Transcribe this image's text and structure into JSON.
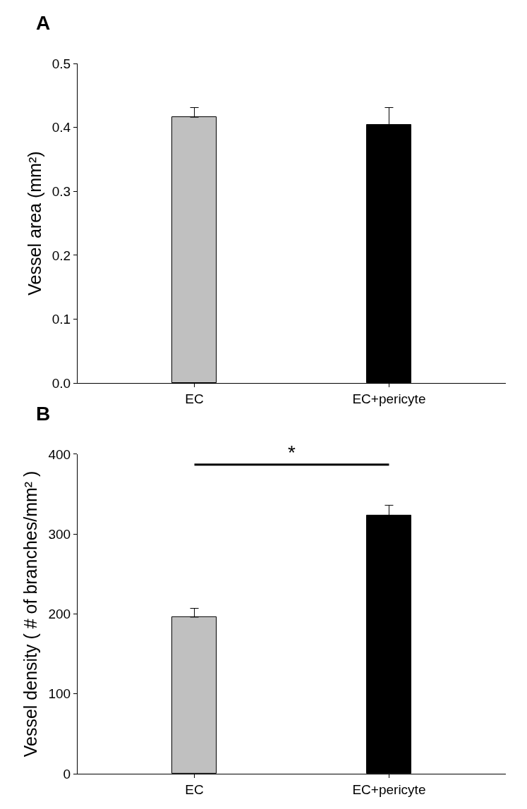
{
  "chart_data": [
    {
      "type": "bar",
      "title": "A",
      "categories": [
        "EC",
        "EC+pericyte"
      ],
      "ylabel": "Vessel area (mm²)",
      "series": [
        {
          "colors": [
            "#c0c0c0",
            "#000000"
          ],
          "values": [
            0.416,
            0.404
          ],
          "errors": [
            [
              0.416,
              0.431
            ],
            [
              0.404,
              0.431
            ]
          ]
        }
      ],
      "ylim": [
        0,
        0.5
      ],
      "yticks": [
        {
          "value": 0,
          "label": "0.0"
        },
        0.1,
        0.2,
        0.3,
        0.4,
        0.5
      ]
    },
    {
      "type": "bar",
      "title": "B",
      "categories": [
        "EC",
        "EC+pericyte"
      ],
      "ylabel": "Vessel density ( # of branches/mm² )",
      "series": [
        {
          "colors": [
            "#c0c0c0",
            "#000000"
          ],
          "values": [
            196,
            323
          ],
          "errors": [
            [
              196,
              207
            ],
            [
              323,
              336
            ]
          ]
        }
      ],
      "ylim": [
        0,
        400
      ],
      "yticks": [
        0,
        100,
        200,
        300,
        400
      ],
      "annotations": [
        "*"
      ]
    }
  ]
}
